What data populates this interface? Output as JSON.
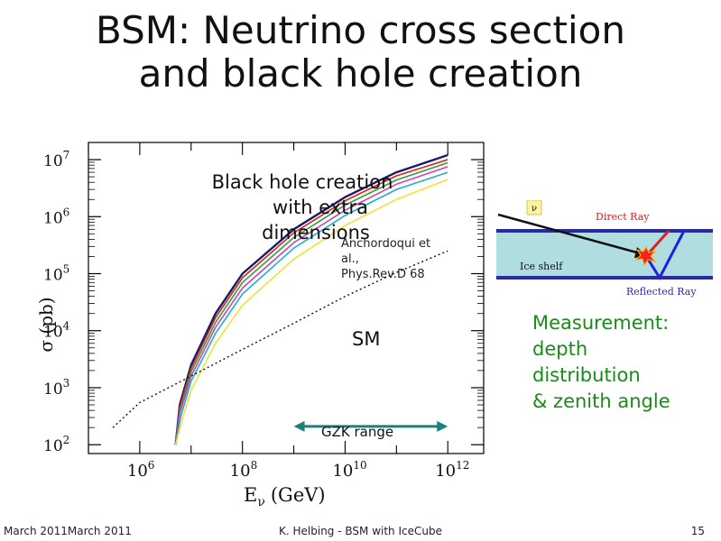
{
  "slide": {
    "title_line1": "BSM: Neutrino cross section",
    "title_line2": "and black hole creation"
  },
  "plot": {
    "ylabel": "σ (pb)",
    "xlabel": "E",
    "xlabel_sub": "ν",
    "xlabel_unit": "(GeV)",
    "annotation_bh": [
      "Black hole creation",
      "with extra",
      "dimensions"
    ],
    "annotation_ref": [
      "Anchordoqui et",
      "al.,",
      "Phys.Rev.D 68"
    ],
    "annotation_sm": "SM",
    "gzk_label": "GZK range"
  },
  "chart_data": {
    "type": "line",
    "xscale": "log",
    "yscale": "log",
    "xlim": [
      100000,
      5000000000000
    ],
    "ylim": [
      70,
      20000000
    ],
    "x_ticks": [
      {
        "value": 1000000,
        "base": "10",
        "exp": "6"
      },
      {
        "value": 100000000,
        "base": "10",
        "exp": "8"
      },
      {
        "value": 10000000000,
        "base": "10",
        "exp": "10"
      },
      {
        "value": 1000000000000,
        "base": "10",
        "exp": "12"
      }
    ],
    "y_ticks": [
      {
        "value": 100,
        "base": "10",
        "exp": "2"
      },
      {
        "value": 1000,
        "base": "10",
        "exp": "3"
      },
      {
        "value": 10000,
        "base": "10",
        "exp": "4"
      },
      {
        "value": 100000,
        "base": "10",
        "exp": "5"
      },
      {
        "value": 1000000,
        "base": "10",
        "exp": "6"
      },
      {
        "value": 10000000,
        "base": "10",
        "exp": "7"
      }
    ],
    "sm": {
      "style": "dotted",
      "x": [
        300000,
        1000000,
        10000000,
        100000000,
        1000000000,
        10000000000,
        100000000000,
        1000000000000
      ],
      "y": [
        200,
        550,
        1600,
        4700,
        13500,
        40000,
        105000,
        250000
      ]
    },
    "series": [
      {
        "color": "#1a1a66",
        "x": [
          5000000,
          6000000,
          10000000,
          30000000,
          100000000,
          1000000000,
          10000000000,
          100000000000,
          1000000000000
        ],
        "y": [
          100,
          500,
          2500,
          20000,
          100000,
          600000,
          2200000,
          6000000,
          12000000
        ]
      },
      {
        "color": "#d62020",
        "x": [
          5000000,
          6000000,
          10000000,
          30000000,
          100000000,
          1000000000,
          10000000000,
          100000000000,
          1000000000000
        ],
        "y": [
          100,
          450,
          2200,
          17000,
          85000,
          520000,
          1900000,
          5200000,
          10000000
        ]
      },
      {
        "color": "#30a030",
        "x": [
          5000000,
          6000000,
          10000000,
          30000000,
          100000000,
          1000000000,
          10000000000,
          100000000000,
          1000000000000
        ],
        "y": [
          100,
          400,
          1900,
          14000,
          70000,
          430000,
          1600000,
          4400000,
          8800000
        ]
      },
      {
        "color": "#d040c0",
        "x": [
          5000000,
          6000000,
          10000000,
          30000000,
          100000000,
          1000000000,
          10000000000,
          100000000000,
          1000000000000
        ],
        "y": [
          100,
          350,
          1600,
          11500,
          56000,
          350000,
          1300000,
          3700000,
          7500000
        ]
      },
      {
        "color": "#20b0c0",
        "x": [
          5000000,
          6200000,
          10000000,
          30000000,
          100000000,
          1000000000,
          10000000000,
          100000000000,
          1000000000000
        ],
        "y": [
          100,
          300,
          1300,
          9000,
          44000,
          280000,
          1050000,
          3000000,
          6000000
        ]
      },
      {
        "color": "#f0e040",
        "x": [
          5000000,
          6500000,
          10000000,
          30000000,
          100000000,
          1000000000,
          10000000000,
          100000000000,
          1000000000000
        ],
        "y": [
          100,
          250,
          900,
          6000,
          28000,
          180000,
          700000,
          2000000,
          4500000
        ]
      }
    ],
    "gzk_range": [
      1000000000,
      1000000000000
    ],
    "gzk_y": 210
  },
  "diagram": {
    "nu_label": "ν",
    "direct_ray": "Direct Ray",
    "ice_shelf": "Ice shelf",
    "reflected_ray": "Reflected Ray",
    "colors": {
      "shelf": "#b0dde0",
      "border": "#2a2aa0",
      "direct": "#e02020",
      "reflected": "#2020e0",
      "title_red": "#cc2222"
    }
  },
  "measurement": [
    "Measurement:",
    "depth",
    "distribution",
    "& zenith angle"
  ],
  "footer": {
    "date": "March 2011March 2011",
    "author": "K. Helbing - BSM with IceCube",
    "page": "15"
  }
}
